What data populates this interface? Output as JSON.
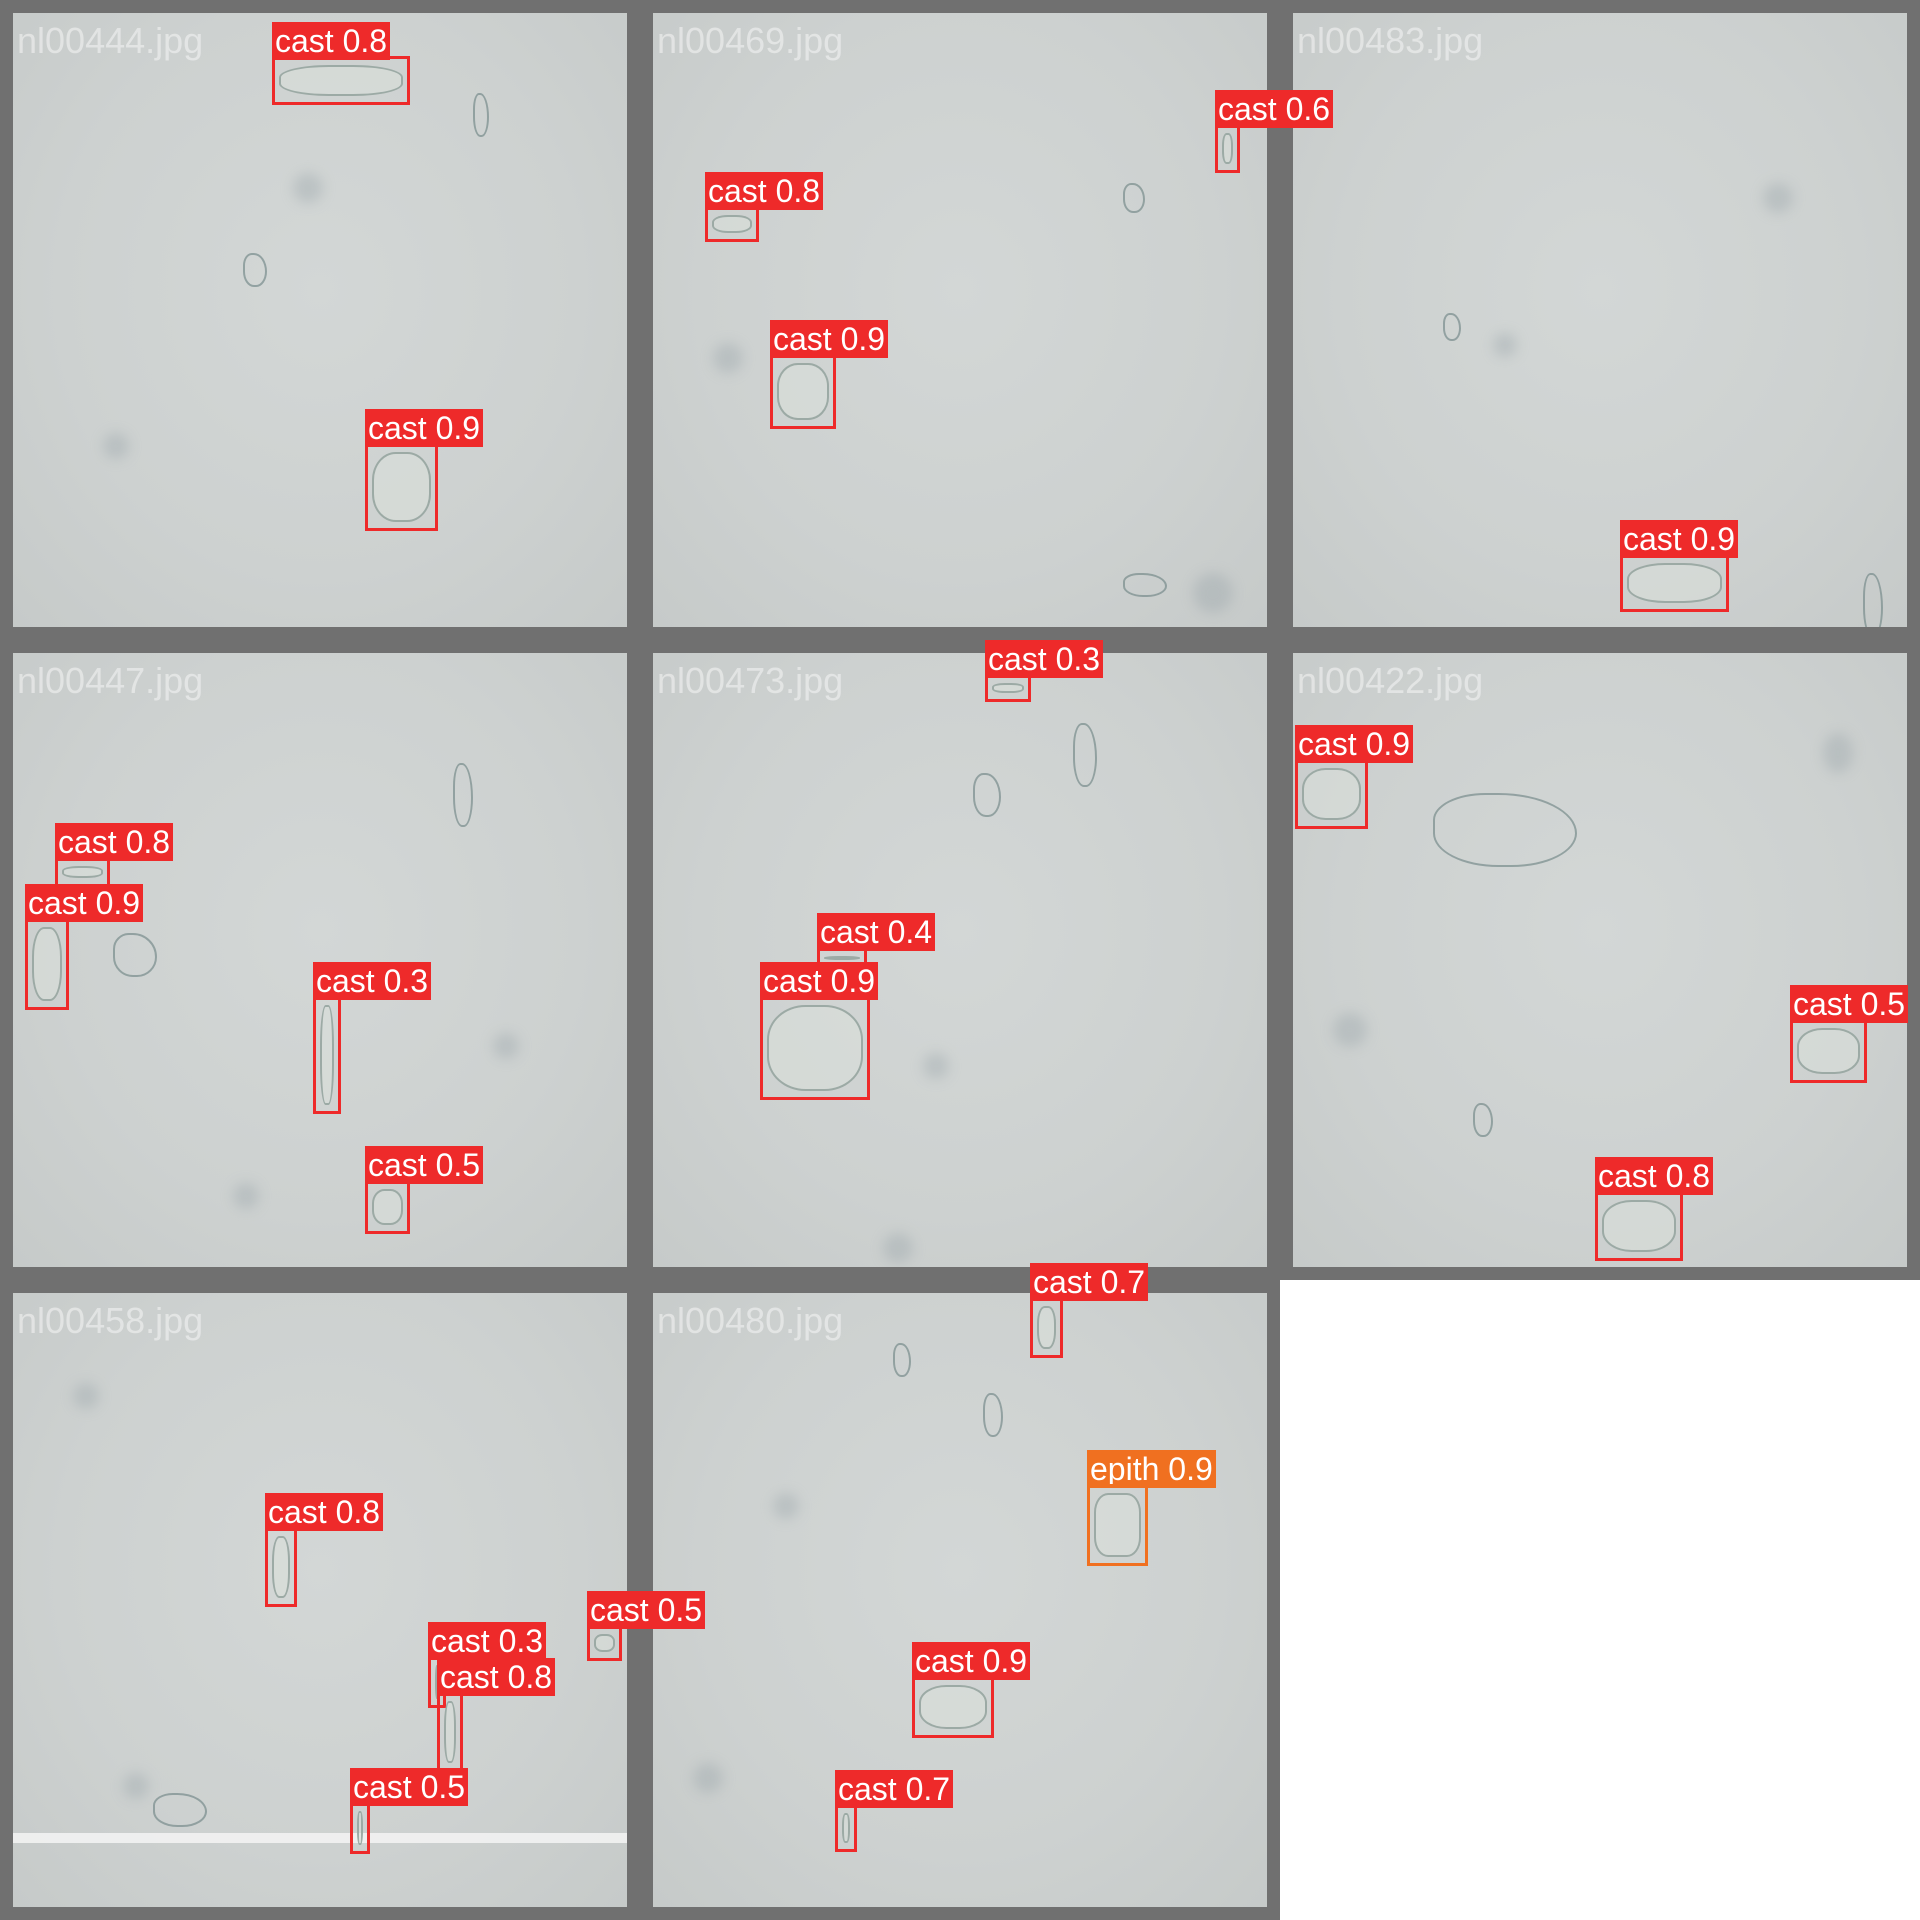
{
  "tiles": [
    {
      "filename": "nl00444.jpg"
    },
    {
      "filename": "nl00469.jpg"
    },
    {
      "filename": "nl00483.jpg"
    },
    {
      "filename": "nl00447.jpg"
    },
    {
      "filename": "nl00473.jpg"
    },
    {
      "filename": "nl00422.jpg"
    },
    {
      "filename": "nl00458.jpg"
    },
    {
      "filename": "nl00480.jpg"
    }
  ],
  "detections": [
    {
      "label": "cast 0.8",
      "color": "#ee2a2a"
    },
    {
      "label": "cast 0.9",
      "color": "#ee2a2a"
    },
    {
      "label": "cast 0.6",
      "color": "#ee2a2a"
    },
    {
      "label": "cast 0.8",
      "color": "#ee2a2a"
    },
    {
      "label": "cast 0.9",
      "color": "#ee2a2a"
    },
    {
      "label": "cast 0.9",
      "color": "#ee2a2a"
    },
    {
      "label": "cast 0.8",
      "color": "#ee2a2a"
    },
    {
      "label": "cast 0.9",
      "color": "#ee2a2a"
    },
    {
      "label": "cast 0.3",
      "color": "#ee2a2a"
    },
    {
      "label": "cast 0.5",
      "color": "#ee2a2a"
    },
    {
      "label": "cast 0.3",
      "color": "#ee2a2a"
    },
    {
      "label": "cast 0.4",
      "color": "#ee2a2a"
    },
    {
      "label": "cast 0.9",
      "color": "#ee2a2a"
    },
    {
      "label": "cast 0.9",
      "color": "#ee2a2a"
    },
    {
      "label": "cast 0.5",
      "color": "#ee2a2a"
    },
    {
      "label": "cast 0.8",
      "color": "#ee2a2a"
    },
    {
      "label": "cast 0.8",
      "color": "#ee2a2a"
    },
    {
      "label": "cast 0.5",
      "color": "#ee2a2a"
    },
    {
      "label": "cast 0.3",
      "color": "#ee2a2a"
    },
    {
      "label": "cast 0.8",
      "color": "#ee2a2a"
    },
    {
      "label": "cast 0.5",
      "color": "#ee2a2a"
    },
    {
      "label": "cast 0.7",
      "color": "#ee2a2a"
    },
    {
      "label": "epith 0.9",
      "color": "#f07020"
    },
    {
      "label": "cast 0.9",
      "color": "#ee2a2a"
    },
    {
      "label": "cast 0.7",
      "color": "#ee2a2a"
    }
  ]
}
